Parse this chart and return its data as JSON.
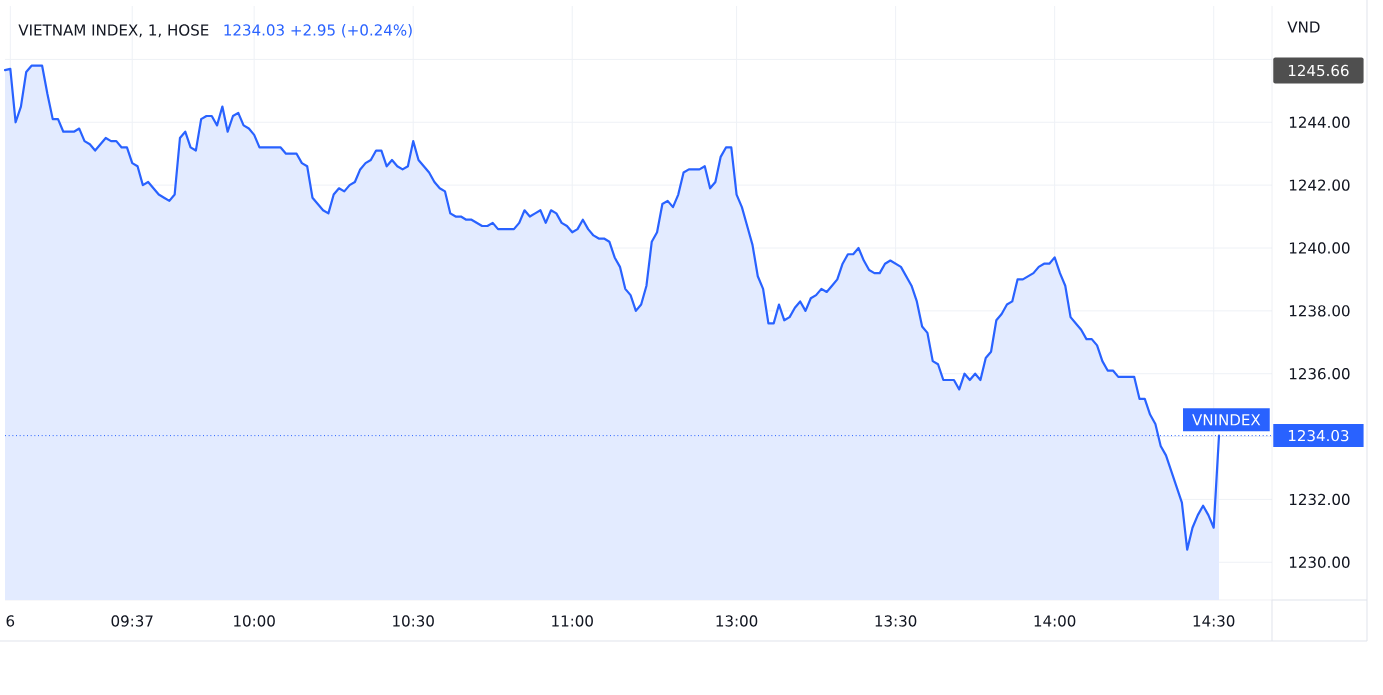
{
  "chart_data": {
    "type": "area",
    "title": "VIETNAM INDEX, 1, HOSE",
    "subtitle": "1234.03 +2.95 (+0.24%)",
    "ylabel": "VND",
    "categories": [
      null,
      "6",
      null,
      null,
      null,
      null,
      null,
      null,
      null,
      null,
      null,
      null,
      null,
      null,
      null,
      null,
      null,
      null,
      null,
      null,
      null,
      null,
      null,
      null,
      "09:37",
      null,
      null,
      null,
      null,
      null,
      null,
      null,
      null,
      null,
      null,
      null,
      null,
      null,
      null,
      null,
      null,
      null,
      null,
      null,
      null,
      null,
      null,
      "10:00",
      null,
      null,
      null,
      null,
      null,
      null,
      null,
      null,
      null,
      null,
      null,
      null,
      null,
      null,
      null,
      null,
      null,
      null,
      null,
      null,
      null,
      null,
      null,
      null,
      null,
      null,
      null,
      null,
      null,
      "10:30",
      null,
      null,
      null,
      null,
      null,
      null,
      null,
      null,
      null,
      null,
      null,
      null,
      null,
      null,
      null,
      null,
      null,
      null,
      null,
      null,
      null,
      null,
      null,
      null,
      null,
      null,
      null,
      null,
      null,
      "11:00",
      null,
      null,
      null,
      null,
      null,
      null,
      null,
      null,
      null,
      null,
      null,
      null,
      null,
      null,
      null,
      null,
      null,
      null,
      null,
      null,
      null,
      null,
      null,
      null,
      null,
      null,
      null,
      null,
      null,
      null,
      "13:00",
      null,
      null,
      null,
      null,
      null,
      null,
      null,
      null,
      null,
      null,
      null,
      null,
      null,
      null,
      null,
      null,
      null,
      null,
      null,
      null,
      null,
      null,
      null,
      null,
      null,
      null,
      null,
      null,
      null,
      "13:30",
      null,
      null,
      null,
      null,
      null,
      null,
      null,
      null,
      null,
      null,
      null,
      null,
      null,
      null,
      null,
      null,
      null,
      null,
      null,
      null,
      null,
      null,
      null,
      null,
      null,
      null,
      null,
      null,
      null,
      "14:00",
      null,
      null,
      null,
      null,
      null,
      null,
      null,
      null,
      null,
      null,
      null,
      null,
      null,
      null,
      null,
      null,
      null,
      null,
      null,
      null,
      null,
      null,
      null,
      null,
      null,
      null,
      null,
      null,
      null,
      "14:30",
      null,
      null,
      null,
      null,
      null,
      null,
      null,
      null,
      null,
      null,
      null
    ],
    "series": [
      {
        "name": "VNINDEX",
        "color": "#2962ff",
        "values": [
          1245.66,
          1245.7,
          1244.0,
          1244.5,
          1245.6,
          1245.8,
          1245.8,
          1245.8,
          1244.9,
          1244.1,
          1244.1,
          1243.7,
          1243.7,
          1243.7,
          1243.8,
          1243.4,
          1243.3,
          1243.1,
          1243.3,
          1243.5,
          1243.4,
          1243.4,
          1243.2,
          1243.2,
          1242.7,
          1242.6,
          1242.0,
          1242.1,
          1241.9,
          1241.7,
          1241.6,
          1241.5,
          1241.7,
          1243.5,
          1243.7,
          1243.2,
          1243.1,
          1244.1,
          1244.2,
          1244.2,
          1243.9,
          1244.5,
          1243.7,
          1244.2,
          1244.3,
          1243.9,
          1243.8,
          1243.6,
          1243.2,
          1243.2,
          1243.2,
          1243.2,
          1243.2,
          1243.0,
          1243.0,
          1243.0,
          1242.7,
          1242.6,
          1241.6,
          1241.4,
          1241.2,
          1241.1,
          1241.7,
          1241.9,
          1241.8,
          1242.0,
          1242.1,
          1242.5,
          1242.7,
          1242.8,
          1243.1,
          1243.1,
          1242.6,
          1242.8,
          1242.6,
          1242.5,
          1242.6,
          1243.4,
          1242.8,
          1242.6,
          1242.4,
          1242.1,
          1241.9,
          1241.8,
          1241.1,
          1241.0,
          1241.0,
          1240.9,
          1240.9,
          1240.8,
          1240.7,
          1240.7,
          1240.8,
          1240.6,
          1240.6,
          1240.6,
          1240.6,
          1240.8,
          1241.2,
          1241.0,
          1241.1,
          1241.2,
          1240.8,
          1241.2,
          1241.1,
          1240.8,
          1240.7,
          1240.5,
          1240.6,
          1240.9,
          1240.6,
          1240.4,
          1240.3,
          1240.3,
          1240.2,
          1239.7,
          1239.4,
          1238.7,
          1238.5,
          1238.0,
          1238.2,
          1238.8,
          1240.2,
          1240.5,
          1241.4,
          1241.5,
          1241.3,
          1241.7,
          1242.4,
          1242.5,
          1242.5,
          1242.5,
          1242.6,
          1241.9,
          1242.1,
          1242.9,
          1243.2,
          1243.2,
          1241.7,
          1241.3,
          1240.7,
          1240.1,
          1239.1,
          1238.7,
          1237.6,
          1237.6,
          1238.2,
          1237.7,
          1237.8,
          1238.1,
          1238.3,
          1238.0,
          1238.4,
          1238.5,
          1238.7,
          1238.6,
          1238.8,
          1239.0,
          1239.5,
          1239.8,
          1239.8,
          1240.0,
          1239.6,
          1239.3,
          1239.2,
          1239.2,
          1239.5,
          1239.6,
          1239.5,
          1239.4,
          1239.1,
          1238.8,
          1238.3,
          1237.5,
          1237.3,
          1236.4,
          1236.3,
          1235.8,
          1235.8,
          1235.8,
          1235.5,
          1236.0,
          1235.8,
          1236.0,
          1235.8,
          1236.5,
          1236.7,
          1237.7,
          1237.9,
          1238.2,
          1238.3,
          1239.0,
          1239.0,
          1239.1,
          1239.2,
          1239.4,
          1239.5,
          1239.5,
          1239.7,
          1239.2,
          1238.8,
          1237.8,
          1237.6,
          1237.4,
          1237.1,
          1237.1,
          1236.9,
          1236.4,
          1236.1,
          1236.1,
          1235.9,
          1235.9,
          1235.9,
          1235.9,
          1235.2,
          1235.2,
          1234.7,
          1234.4,
          1233.7,
          1233.4,
          1232.9,
          1232.4,
          1231.9,
          1230.4,
          1231.1,
          1231.5,
          1231.8,
          1231.5,
          1231.1,
          1234.03,
          null,
          null,
          null,
          null,
          null,
          null,
          null,
          null,
          null,
          null
        ]
      }
    ],
    "ylim": [
      1228.8,
      1247.7
    ],
    "yticks": [
      {
        "value": 1230,
        "label": "1230.00"
      },
      {
        "value": 1232,
        "label": "1232.00"
      },
      {
        "value": 1234,
        "label": null
      },
      {
        "value": 1236,
        "label": "1236.00"
      },
      {
        "value": 1238,
        "label": "1238.00"
      },
      {
        "value": 1240,
        "label": "1240.00"
      },
      {
        "value": 1242,
        "label": "1242.00"
      },
      {
        "value": 1244,
        "label": "1244.00"
      },
      {
        "value": 1246,
        "label": null
      }
    ],
    "grid": true,
    "ref_lines": [
      {
        "axis": "y",
        "value": 1234.03,
        "label": "1234.03",
        "color": "#2962ff",
        "line_style": "dotted"
      }
    ],
    "annotations": [
      "1245.66"
    ]
  }
}
